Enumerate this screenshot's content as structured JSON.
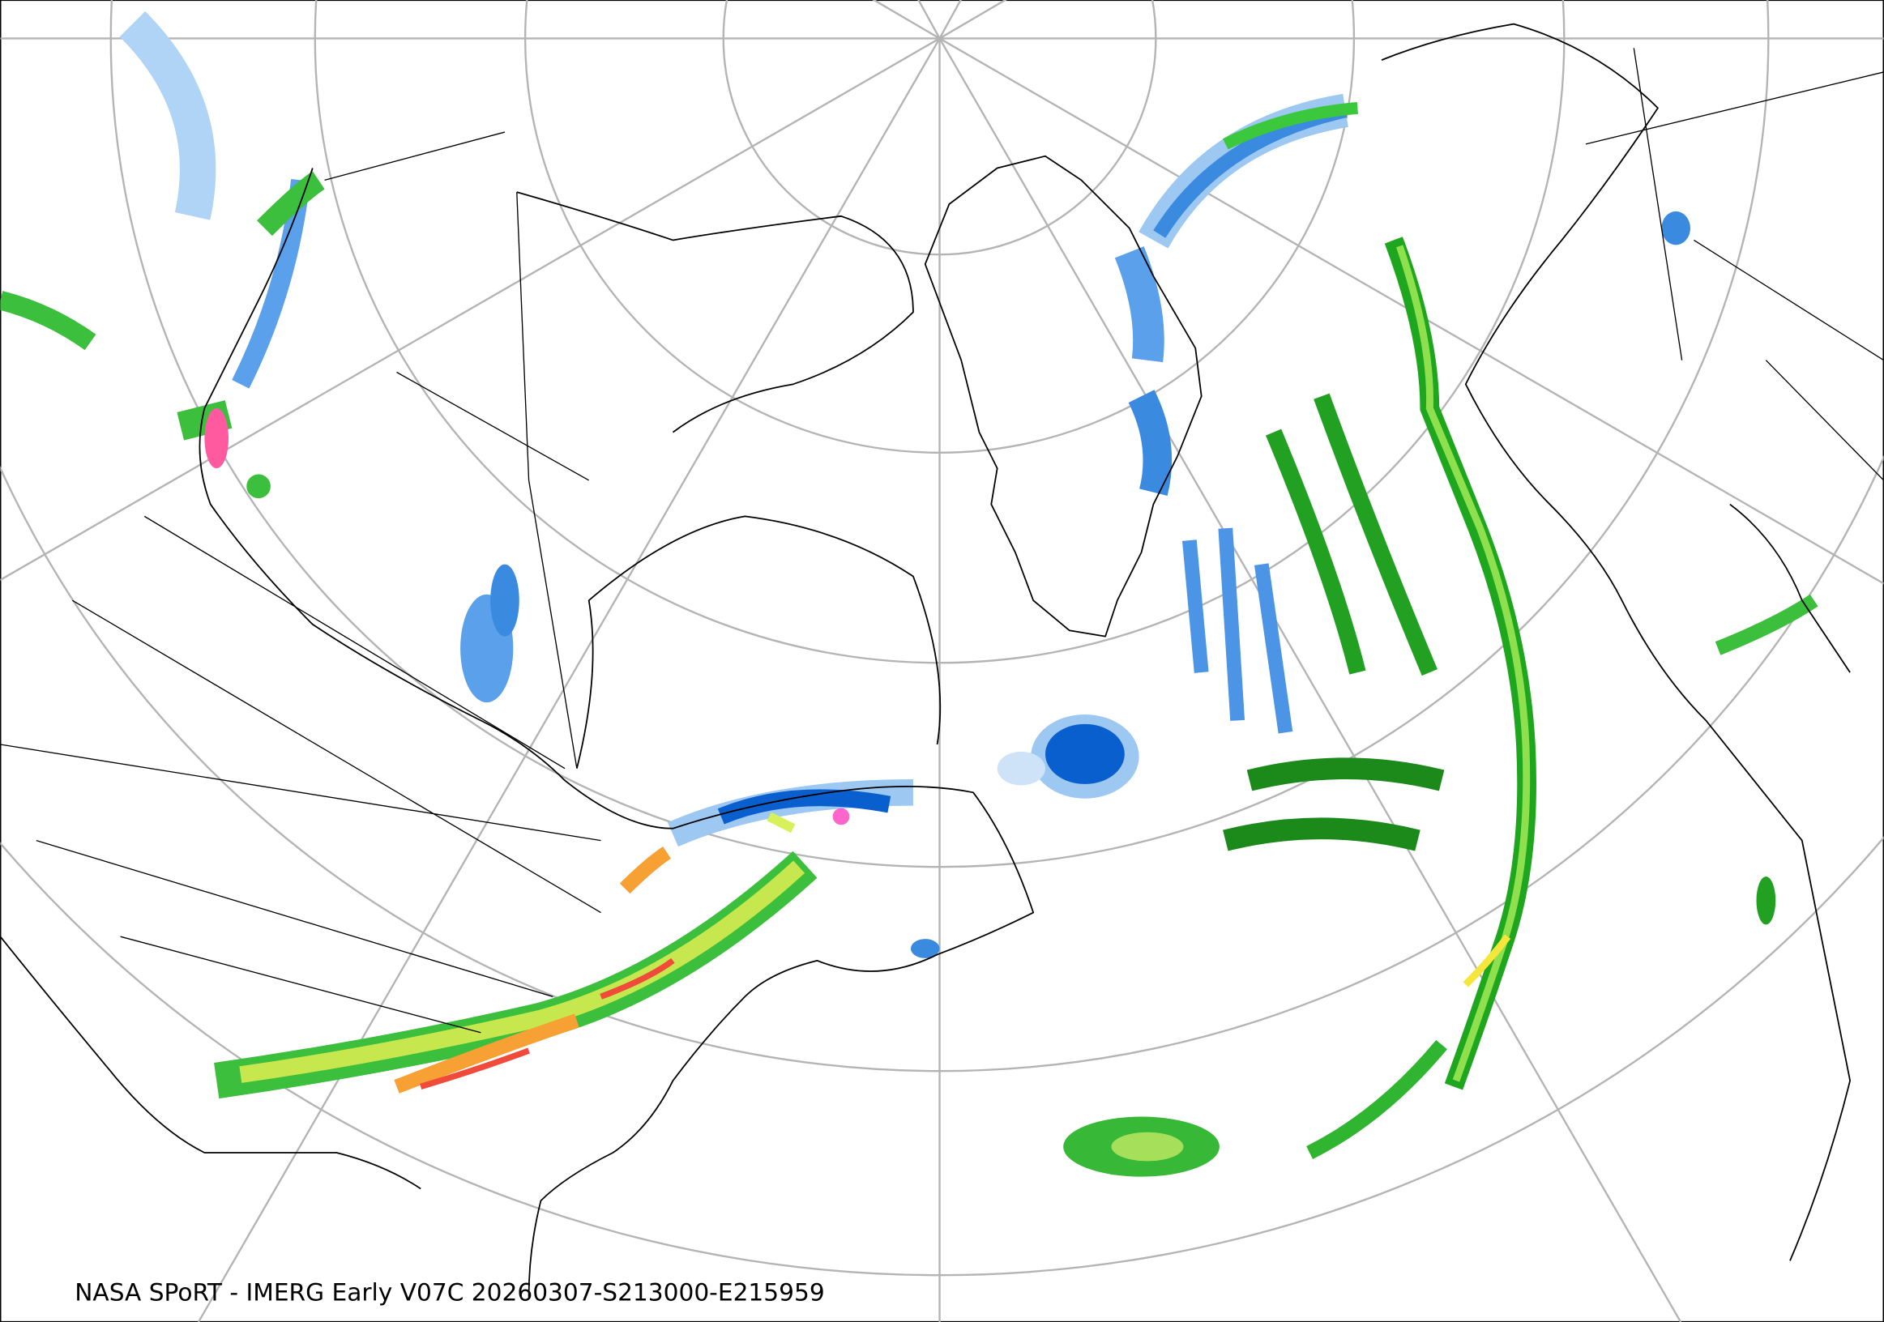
{
  "caption": "NASA SPoRT - IMERG Early V07C 20260307-S213000-E215959"
}
